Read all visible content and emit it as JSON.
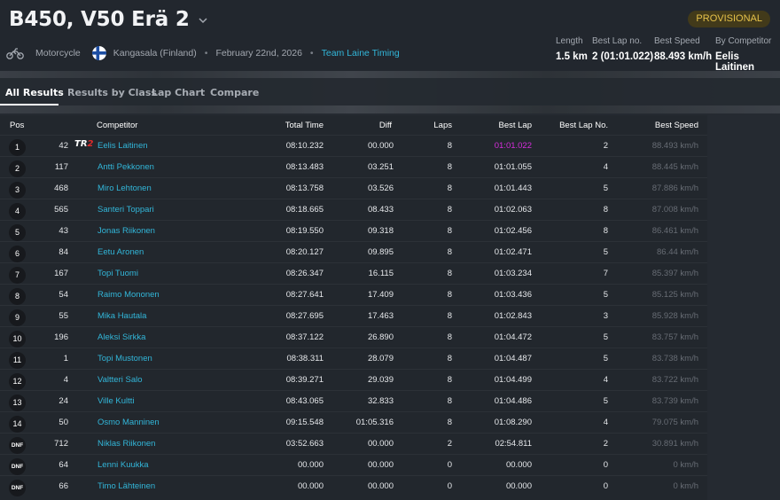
{
  "header": {
    "title": "B450, V50 Erä 2",
    "status_badge": "PROVISIONAL",
    "category": "Motorcycle",
    "location": "Kangasala (Finland)",
    "date": "February 22nd, 2026",
    "organizer_link": "Team Laine Timing",
    "separator": "•",
    "stats": {
      "length_label": "Length",
      "length_value": "1.5 km",
      "best_lap_no_label": "Best Lap no.",
      "best_lap_no_value": "2 (01:01.022)",
      "best_speed_label": "Best Speed",
      "best_speed_value": "88.493 km/h",
      "by_competitor_label": "By Competitor",
      "by_competitor_value": "Eelis Laitinen"
    }
  },
  "tabs": [
    "All Results",
    "Results by Class",
    "Lap Chart",
    "Compare"
  ],
  "table": {
    "columns": {
      "pos": "Pos",
      "competitor": "Competitor",
      "total_time": "Total Time",
      "diff": "Diff",
      "laps": "Laps",
      "best_lap": "Best Lap",
      "best_lap_no": "Best Lap No.",
      "best_speed": "Best Speed"
    },
    "team_badge": {
      "prefix": "TR",
      "suffix": "2"
    },
    "rows": [
      {
        "pos": "1",
        "num": "42",
        "name": "Eelis Laitinen",
        "total": "08:10.232",
        "diff": "00.000",
        "laps": "8",
        "best": "01:01.022",
        "best_no": "2",
        "speed": "88.493 km/h"
      },
      {
        "pos": "2",
        "num": "117",
        "name": "Antti Pekkonen",
        "total": "08:13.483",
        "diff": "03.251",
        "laps": "8",
        "best": "01:01.055",
        "best_no": "4",
        "speed": "88.445 km/h"
      },
      {
        "pos": "3",
        "num": "468",
        "name": "Miro Lehtonen",
        "total": "08:13.758",
        "diff": "03.526",
        "laps": "8",
        "best": "01:01.443",
        "best_no": "5",
        "speed": "87.886 km/h"
      },
      {
        "pos": "4",
        "num": "565",
        "name": "Santeri Toppari",
        "total": "08:18.665",
        "diff": "08.433",
        "laps": "8",
        "best": "01:02.063",
        "best_no": "8",
        "speed": "87.008 km/h"
      },
      {
        "pos": "5",
        "num": "43",
        "name": "Jonas Riikonen",
        "total": "08:19.550",
        "diff": "09.318",
        "laps": "8",
        "best": "01:02.456",
        "best_no": "8",
        "speed": "86.461 km/h"
      },
      {
        "pos": "6",
        "num": "84",
        "name": "Eetu Aronen",
        "total": "08:20.127",
        "diff": "09.895",
        "laps": "8",
        "best": "01:02.471",
        "best_no": "5",
        "speed": "86.44 km/h"
      },
      {
        "pos": "7",
        "num": "167",
        "name": "Topi Tuomi",
        "total": "08:26.347",
        "diff": "16.115",
        "laps": "8",
        "best": "01:03.234",
        "best_no": "7",
        "speed": "85.397 km/h"
      },
      {
        "pos": "8",
        "num": "54",
        "name": "Raimo Mononen",
        "total": "08:27.641",
        "diff": "17.409",
        "laps": "8",
        "best": "01:03.436",
        "best_no": "5",
        "speed": "85.125 km/h"
      },
      {
        "pos": "9",
        "num": "55",
        "name": "Mika Hautala",
        "total": "08:27.695",
        "diff": "17.463",
        "laps": "8",
        "best": "01:02.843",
        "best_no": "3",
        "speed": "85.928 km/h"
      },
      {
        "pos": "10",
        "num": "196",
        "name": "Aleksi Sirkka",
        "total": "08:37.122",
        "diff": "26.890",
        "laps": "8",
        "best": "01:04.472",
        "best_no": "5",
        "speed": "83.757 km/h"
      },
      {
        "pos": "11",
        "num": "1",
        "name": "Topi Mustonen",
        "total": "08:38.311",
        "diff": "28.079",
        "laps": "8",
        "best": "01:04.487",
        "best_no": "5",
        "speed": "83.738 km/h"
      },
      {
        "pos": "12",
        "num": "4",
        "name": "Valtteri Salo",
        "total": "08:39.271",
        "diff": "29.039",
        "laps": "8",
        "best": "01:04.499",
        "best_no": "4",
        "speed": "83.722 km/h"
      },
      {
        "pos": "13",
        "num": "24",
        "name": "Ville Kultti",
        "total": "08:43.065",
        "diff": "32.833",
        "laps": "8",
        "best": "01:04.486",
        "best_no": "5",
        "speed": "83.739 km/h"
      },
      {
        "pos": "14",
        "num": "50",
        "name": "Osmo Manninen",
        "total": "09:15.548",
        "diff": "01:05.316",
        "laps": "8",
        "best": "01:08.290",
        "best_no": "4",
        "speed": "79.075 km/h"
      },
      {
        "pos": "DNF",
        "num": "712",
        "name": "Niklas Riikonen",
        "total": "03:52.663",
        "diff": "00.000",
        "laps": "2",
        "best": "02:54.811",
        "best_no": "2",
        "speed": "30.891 km/h"
      },
      {
        "pos": "DNF",
        "num": "64",
        "name": "Lenni Kuukka",
        "total": "00.000",
        "diff": "00.000",
        "laps": "0",
        "best": "00.000",
        "best_no": "0",
        "speed": "0 km/h"
      },
      {
        "pos": "DNF",
        "num": "66",
        "name": "Timo Lähteinen",
        "total": "00.000",
        "diff": "00.000",
        "laps": "0",
        "best": "00.000",
        "best_no": "0",
        "speed": "0 km/h"
      }
    ]
  },
  "colors": {
    "accent": "#32b6d9",
    "fastest_lap": "#d52ddb",
    "badge_text": "#e6c24a",
    "background": "#252a31"
  }
}
